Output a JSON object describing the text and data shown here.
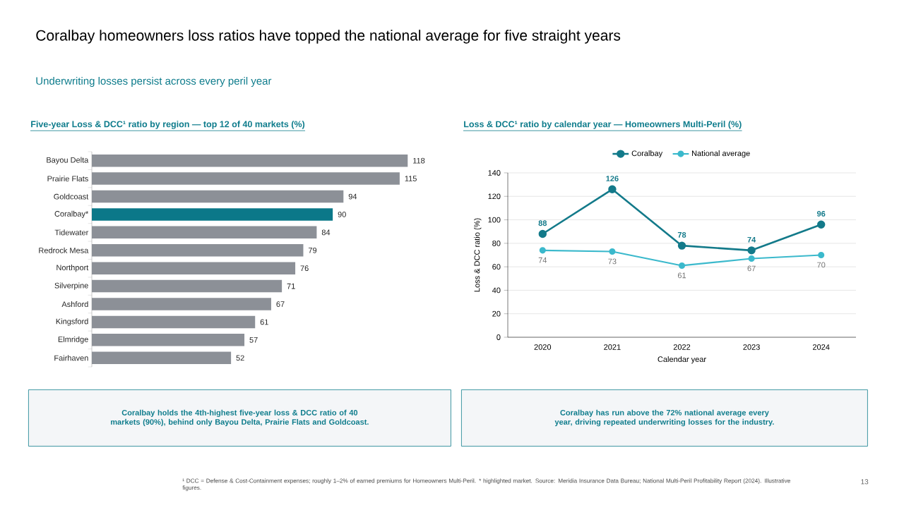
{
  "chart_data": [
    {
      "type": "other",
      "title": "Coralbay homeowners loss ratios have topped the national average for five straight years",
      "subtitle": "Underwriting losses persist across every peril year",
      "annotations": [
        "¹ DCC = Defense & Cost-Containment expenses; roughly 1–2% of earned premiums for Homeowners Multi-Peril. * highlighted market.  Source: Meridia Insurance Data Bureau; National Multi-Peril Profitability Report (2024). Illustrative figures.",
        "13"
      ]
    },
    {
      "type": "bar",
      "orientation": "horizontal",
      "title": "Five-year Loss & DCC¹ ratio by region — top 12 of 40 markets (%)",
      "categories": [
        "Bayou Delta",
        "Prairie Flats",
        "Goldcoast",
        "Coralbay*",
        "Tidewater",
        "Redrock Mesa",
        "Northport",
        "Silverpine",
        "Ashford",
        "Kingsford",
        "Elmridge",
        "Fairhaven"
      ],
      "values": [
        118,
        115,
        94,
        90,
        84,
        79,
        76,
        71,
        67,
        61,
        57,
        52
      ],
      "colors": [
        "#8c9097",
        "#8c9097",
        "#8c9097",
        "#0b7889",
        "#8c9097",
        "#8c9097",
        "#8c9097",
        "#8c9097",
        "#8c9097",
        "#8c9097",
        "#8c9097",
        "#8c9097"
      ],
      "data_labels": true,
      "annotations": [
        "Coralbay holds the 4th-highest five-year loss & DCC ratio of 40 markets (90%), behind only Bayou Delta, Prairie Flats and Goldcoast."
      ]
    },
    {
      "type": "line",
      "title": "Loss & DCC¹ ratio by calendar year — Homeowners Multi-Peril (%)",
      "categories": [
        "2020",
        "2021",
        "2022",
        "2023",
        "2024"
      ],
      "series": [
        {
          "name": "Coralbay",
          "color": "#137a8a",
          "values": [
            88,
            126,
            78,
            74,
            96
          ]
        },
        {
          "name": "National average",
          "color": "#3bb9cc",
          "values": [
            74,
            73,
            61,
            67,
            70
          ]
        }
      ],
      "xlabel": "Calendar year",
      "ylabel": "Loss & DCC ratio (%)",
      "ylim": [
        0,
        140
      ],
      "yticks": [
        0,
        20,
        40,
        60,
        80,
        100,
        120,
        140
      ],
      "grid": "y",
      "legend": "top",
      "marker": "circle",
      "data_labels": true,
      "annotations": [
        "Coralbay has run above the 72% national average every year, driving repeated underwriting losses for the industry."
      ]
    }
  ]
}
